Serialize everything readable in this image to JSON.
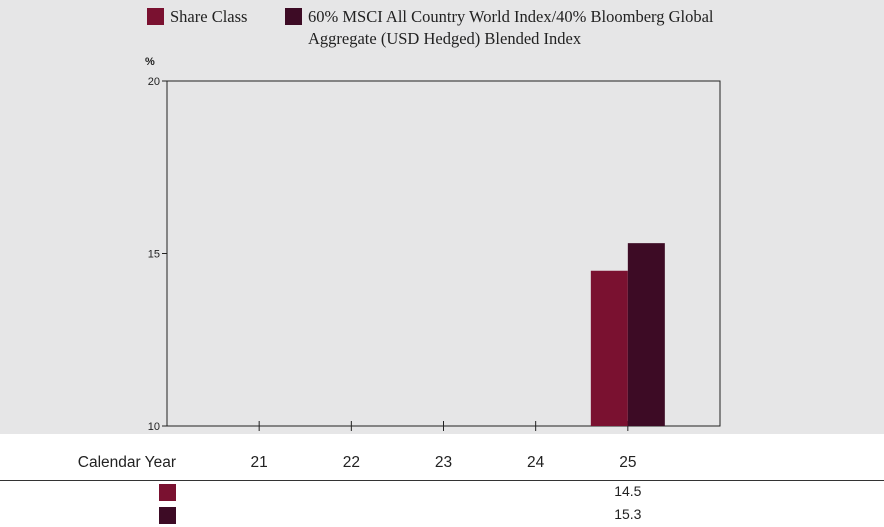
{
  "chart_data": {
    "type": "bar",
    "unit_label": "%",
    "categories": [
      "21",
      "22",
      "23",
      "24",
      "25"
    ],
    "series": [
      {
        "name": "Share Class",
        "color": "#7a1130",
        "values": [
          null,
          null,
          null,
          null,
          14.5
        ],
        "value_labels": [
          "",
          "",
          "",
          "",
          "14.5"
        ]
      },
      {
        "name": "60% MSCI All Country World Index/40% Bloomberg Global Aggregate (USD Hedged) Blended Index",
        "color": "#3d0b25",
        "values": [
          null,
          null,
          null,
          null,
          15.3
        ],
        "value_labels": [
          "",
          "",
          "",
          "",
          "15.3"
        ]
      }
    ],
    "ylim": [
      10,
      20
    ],
    "yticks": [
      10,
      15,
      20
    ],
    "grid": false,
    "legend_position": "top",
    "table_header": "Calendar Year"
  }
}
